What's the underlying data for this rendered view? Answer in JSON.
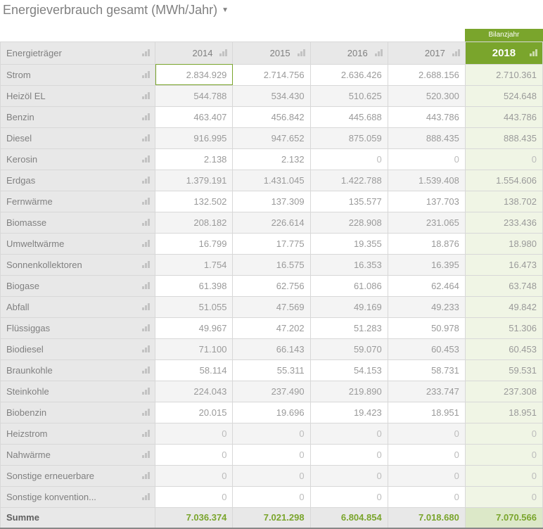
{
  "title": "Energieverbrauch gesamt (MWh/Jahr)",
  "columns": {
    "row_header": "Energieträger",
    "years": [
      "2014",
      "2015",
      "2016",
      "2017"
    ],
    "current_year_label_top": "Bilanzjahr",
    "current_year": "2018"
  },
  "colors": {
    "accent": "#7aa52c",
    "header_bg": "#e8e8e8",
    "alt_row": "#f4f4f4",
    "cur_col_bg": "#f0f5e5",
    "text": "#808080",
    "value": "#9a9a9a",
    "zero": "#bcbcbc",
    "border": "#d8d8d8"
  },
  "selected_cell": {
    "row": 0,
    "col": 0
  },
  "rows": [
    {
      "label": "Strom",
      "v": [
        "2.834.929",
        "2.714.756",
        "2.636.426",
        "2.688.156",
        "2.710.361"
      ]
    },
    {
      "label": "Heizöl EL",
      "v": [
        "544.788",
        "534.430",
        "510.625",
        "520.300",
        "524.648"
      ]
    },
    {
      "label": "Benzin",
      "v": [
        "463.407",
        "456.842",
        "445.688",
        "443.786",
        "443.786"
      ]
    },
    {
      "label": "Diesel",
      "v": [
        "916.995",
        "947.652",
        "875.059",
        "888.435",
        "888.435"
      ]
    },
    {
      "label": "Kerosin",
      "v": [
        "2.138",
        "2.132",
        "0",
        "0",
        "0"
      ]
    },
    {
      "label": "Erdgas",
      "v": [
        "1.379.191",
        "1.431.045",
        "1.422.788",
        "1.539.408",
        "1.554.606"
      ]
    },
    {
      "label": "Fernwärme",
      "v": [
        "132.502",
        "137.309",
        "135.577",
        "137.703",
        "138.702"
      ]
    },
    {
      "label": "Biomasse",
      "v": [
        "208.182",
        "226.614",
        "228.908",
        "231.065",
        "233.436"
      ]
    },
    {
      "label": "Umweltwärme",
      "v": [
        "16.799",
        "17.775",
        "19.355",
        "18.876",
        "18.980"
      ]
    },
    {
      "label": "Sonnenkollektoren",
      "v": [
        "1.754",
        "16.575",
        "16.353",
        "16.395",
        "16.473"
      ]
    },
    {
      "label": "Biogase",
      "v": [
        "61.398",
        "62.756",
        "61.086",
        "62.464",
        "63.748"
      ]
    },
    {
      "label": "Abfall",
      "v": [
        "51.055",
        "47.569",
        "49.169",
        "49.233",
        "49.842"
      ]
    },
    {
      "label": "Flüssiggas",
      "v": [
        "49.967",
        "47.202",
        "51.283",
        "50.978",
        "51.306"
      ]
    },
    {
      "label": "Biodiesel",
      "v": [
        "71.100",
        "66.143",
        "59.070",
        "60.453",
        "60.453"
      ]
    },
    {
      "label": "Braunkohle",
      "v": [
        "58.114",
        "55.311",
        "54.153",
        "58.731",
        "59.531"
      ]
    },
    {
      "label": "Steinkohle",
      "v": [
        "224.043",
        "237.490",
        "219.890",
        "233.747",
        "237.308"
      ]
    },
    {
      "label": "Biobenzin",
      "v": [
        "20.015",
        "19.696",
        "19.423",
        "18.951",
        "18.951"
      ]
    },
    {
      "label": "Heizstrom",
      "v": [
        "0",
        "0",
        "0",
        "0",
        "0"
      ]
    },
    {
      "label": "Nahwärme",
      "v": [
        "0",
        "0",
        "0",
        "0",
        "0"
      ]
    },
    {
      "label": "Sonstige erneuerbare",
      "v": [
        "0",
        "0",
        "0",
        "0",
        "0"
      ]
    },
    {
      "label": "Sonstige konvention...",
      "v": [
        "0",
        "0",
        "0",
        "0",
        "0"
      ]
    }
  ],
  "sum": {
    "label": "Summe",
    "v": [
      "7.036.374",
      "7.021.298",
      "6.804.854",
      "7.018.680",
      "7.070.566"
    ]
  }
}
